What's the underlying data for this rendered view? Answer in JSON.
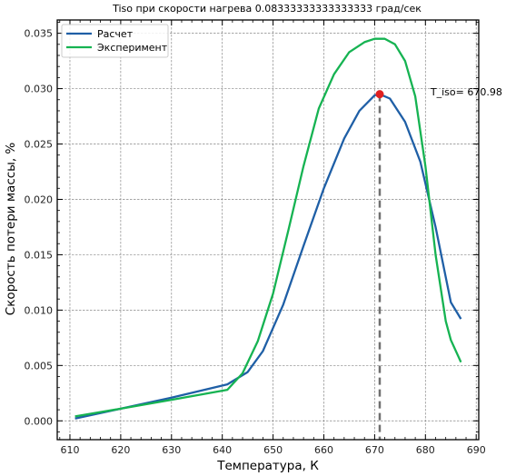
{
  "chart_data": {
    "type": "line",
    "title": "Tiso при скорости нагрева 0.08333333333333333 град/сек",
    "xlabel": "Температура, К",
    "ylabel": "Скорость потери массы, %",
    "xlim": [
      607.5,
      690.5
    ],
    "ylim": [
      -0.0017,
      0.0362
    ],
    "xticks": [
      610,
      620,
      630,
      640,
      650,
      660,
      670,
      680,
      690
    ],
    "yticks": [
      0.0,
      0.005,
      0.01,
      0.015,
      0.02,
      0.025,
      0.03,
      0.035
    ],
    "ytick_labels": [
      "0.000",
      "0.005",
      "0.010",
      "0.015",
      "0.020",
      "0.025",
      "0.030",
      "0.035"
    ],
    "grid": true,
    "legend_position": "top-left",
    "series": [
      {
        "name": "Расчет",
        "color": "#1f5fa6",
        "x": [
          611,
          620,
          630,
          641,
          645,
          648,
          652,
          656,
          660,
          664,
          667,
          670,
          671,
          673,
          676,
          679,
          682,
          685,
          687
        ],
        "y": [
          0.0002,
          0.0011,
          0.0021,
          0.0033,
          0.0044,
          0.0063,
          0.0105,
          0.0158,
          0.021,
          0.0255,
          0.028,
          0.0294,
          0.0295,
          0.0291,
          0.027,
          0.0234,
          0.0175,
          0.0107,
          0.0092
        ]
      },
      {
        "name": "Эксперимент",
        "color": "#16b352",
        "x": [
          611,
          620,
          630,
          641,
          644,
          647,
          650,
          653,
          656,
          659,
          662,
          665,
          668,
          670,
          672,
          674,
          676,
          678,
          680,
          682,
          684,
          685,
          687
        ],
        "y": [
          0.0004,
          0.0011,
          0.0019,
          0.0028,
          0.0043,
          0.0072,
          0.0115,
          0.0172,
          0.023,
          0.0282,
          0.0313,
          0.0333,
          0.0342,
          0.0345,
          0.0345,
          0.034,
          0.0325,
          0.0293,
          0.023,
          0.015,
          0.009,
          0.0073,
          0.0053
        ]
      }
    ],
    "marker": {
      "x": 671,
      "y": 0.0295,
      "color": "#e02020"
    },
    "vline": {
      "x": 671,
      "color": "#707070"
    },
    "annotation": {
      "text": "T_iso= 670.98",
      "x": 681,
      "y": 0.0297
    }
  }
}
